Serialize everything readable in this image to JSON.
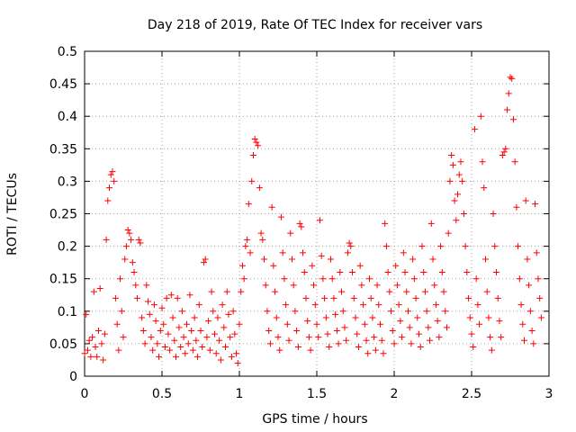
{
  "chart_data": {
    "type": "scatter",
    "title": "Day 218 of 2019, Rate Of TEC Index for receiver vars",
    "xlabel": "GPS time / hours",
    "ylabel": "ROTI / TECUs",
    "xlim": [
      0,
      3
    ],
    "ylim": [
      0,
      0.5
    ],
    "grid": true,
    "marker": "+",
    "marker_color": "#ff0000",
    "xticks": [
      0,
      0.5,
      1,
      1.5,
      2,
      2.5,
      3
    ],
    "yticks": [
      0,
      0.05,
      0.1,
      0.15,
      0.2,
      0.25,
      0.3,
      0.35,
      0.4,
      0.45,
      0.5
    ],
    "xtick_labels": [
      "0",
      "0.5",
      "1",
      "1.5",
      "2",
      "2.5",
      "3"
    ],
    "ytick_labels": [
      "0",
      "0.05",
      "0.1",
      "0.15",
      "0.2",
      "0.25",
      "0.3",
      "0.35",
      "0.4",
      "0.45",
      "0.5"
    ],
    "series": [
      {
        "name": "ROTI",
        "points": [
          [
            0.0,
            0.035
          ],
          [
            0.01,
            0.095
          ],
          [
            0.02,
            0.04
          ],
          [
            0.03,
            0.055
          ],
          [
            0.04,
            0.03
          ],
          [
            0.05,
            0.06
          ],
          [
            0.06,
            0.13
          ],
          [
            0.07,
            0.045
          ],
          [
            0.08,
            0.03
          ],
          [
            0.09,
            0.07
          ],
          [
            0.1,
            0.135
          ],
          [
            0.11,
            0.05
          ],
          [
            0.12,
            0.025
          ],
          [
            0.13,
            0.065
          ],
          [
            0.14,
            0.21
          ],
          [
            0.15,
            0.27
          ],
          [
            0.16,
            0.29
          ],
          [
            0.17,
            0.31
          ],
          [
            0.18,
            0.315
          ],
          [
            0.19,
            0.3
          ],
          [
            0.2,
            0.12
          ],
          [
            0.21,
            0.08
          ],
          [
            0.22,
            0.04
          ],
          [
            0.23,
            0.15
          ],
          [
            0.24,
            0.1
          ],
          [
            0.25,
            0.06
          ],
          [
            0.26,
            0.18
          ],
          [
            0.27,
            0.2
          ],
          [
            0.28,
            0.225
          ],
          [
            0.29,
            0.22
          ],
          [
            0.3,
            0.21
          ],
          [
            0.31,
            0.175
          ],
          [
            0.32,
            0.16
          ],
          [
            0.33,
            0.14
          ],
          [
            0.34,
            0.12
          ],
          [
            0.35,
            0.21
          ],
          [
            0.36,
            0.205
          ],
          [
            0.37,
            0.09
          ],
          [
            0.38,
            0.07
          ],
          [
            0.39,
            0.05
          ],
          [
            0.4,
            0.14
          ],
          [
            0.41,
            0.115
          ],
          [
            0.42,
            0.095
          ],
          [
            0.43,
            0.06
          ],
          [
            0.44,
            0.04
          ],
          [
            0.45,
            0.11
          ],
          [
            0.46,
            0.085
          ],
          [
            0.47,
            0.05
          ],
          [
            0.48,
            0.03
          ],
          [
            0.49,
            0.07
          ],
          [
            0.5,
            0.105
          ],
          [
            0.51,
            0.08
          ],
          [
            0.52,
            0.045
          ],
          [
            0.53,
            0.12
          ],
          [
            0.54,
            0.065
          ],
          [
            0.55,
            0.04
          ],
          [
            0.56,
            0.125
          ],
          [
            0.57,
            0.09
          ],
          [
            0.58,
            0.055
          ],
          [
            0.59,
            0.03
          ],
          [
            0.6,
            0.12
          ],
          [
            0.61,
            0.075
          ],
          [
            0.62,
            0.045
          ],
          [
            0.63,
            0.1
          ],
          [
            0.64,
            0.06
          ],
          [
            0.65,
            0.035
          ],
          [
            0.66,
            0.08
          ],
          [
            0.67,
            0.05
          ],
          [
            0.68,
            0.125
          ],
          [
            0.69,
            0.07
          ],
          [
            0.7,
            0.04
          ],
          [
            0.71,
            0.09
          ],
          [
            0.72,
            0.055
          ],
          [
            0.73,
            0.03
          ],
          [
            0.74,
            0.11
          ],
          [
            0.75,
            0.07
          ],
          [
            0.76,
            0.045
          ],
          [
            0.77,
            0.175
          ],
          [
            0.78,
            0.18
          ],
          [
            0.79,
            0.06
          ],
          [
            0.8,
            0.085
          ],
          [
            0.81,
            0.04
          ],
          [
            0.82,
            0.13
          ],
          [
            0.83,
            0.1
          ],
          [
            0.84,
            0.065
          ],
          [
            0.85,
            0.035
          ],
          [
            0.86,
            0.09
          ],
          [
            0.87,
            0.055
          ],
          [
            0.88,
            0.025
          ],
          [
            0.89,
            0.11
          ],
          [
            0.9,
            0.075
          ],
          [
            0.91,
            0.045
          ],
          [
            0.92,
            0.13
          ],
          [
            0.93,
            0.095
          ],
          [
            0.94,
            0.06
          ],
          [
            0.95,
            0.03
          ],
          [
            0.96,
            0.1
          ],
          [
            0.97,
            0.065
          ],
          [
            0.98,
            0.035
          ],
          [
            0.99,
            0.02
          ],
          [
            1.0,
            0.08
          ],
          [
            1.01,
            0.13
          ],
          [
            1.02,
            0.17
          ],
          [
            1.03,
            0.15
          ],
          [
            1.04,
            0.2
          ],
          [
            1.05,
            0.21
          ],
          [
            1.06,
            0.265
          ],
          [
            1.07,
            0.19
          ],
          [
            1.08,
            0.3
          ],
          [
            1.09,
            0.34
          ],
          [
            1.1,
            0.365
          ],
          [
            1.11,
            0.36
          ],
          [
            1.12,
            0.355
          ],
          [
            1.13,
            0.29
          ],
          [
            1.14,
            0.22
          ],
          [
            1.15,
            0.21
          ],
          [
            1.16,
            0.18
          ],
          [
            1.17,
            0.14
          ],
          [
            1.18,
            0.1
          ],
          [
            1.19,
            0.07
          ],
          [
            1.2,
            0.05
          ],
          [
            1.21,
            0.26
          ],
          [
            1.22,
            0.17
          ],
          [
            1.23,
            0.13
          ],
          [
            1.24,
            0.09
          ],
          [
            1.25,
            0.06
          ],
          [
            1.26,
            0.04
          ],
          [
            1.27,
            0.245
          ],
          [
            1.28,
            0.19
          ],
          [
            1.29,
            0.15
          ],
          [
            1.3,
            0.11
          ],
          [
            1.31,
            0.08
          ],
          [
            1.32,
            0.055
          ],
          [
            1.33,
            0.22
          ],
          [
            1.34,
            0.18
          ],
          [
            1.35,
            0.14
          ],
          [
            1.36,
            0.1
          ],
          [
            1.37,
            0.07
          ],
          [
            1.38,
            0.045
          ],
          [
            1.39,
            0.235
          ],
          [
            1.4,
            0.23
          ],
          [
            1.41,
            0.19
          ],
          [
            1.42,
            0.16
          ],
          [
            1.43,
            0.12
          ],
          [
            1.44,
            0.085
          ],
          [
            1.45,
            0.06
          ],
          [
            1.46,
            0.04
          ],
          [
            1.47,
            0.17
          ],
          [
            1.48,
            0.14
          ],
          [
            1.49,
            0.11
          ],
          [
            1.5,
            0.08
          ],
          [
            1.51,
            0.06
          ],
          [
            1.52,
            0.24
          ],
          [
            1.53,
            0.185
          ],
          [
            1.54,
            0.15
          ],
          [
            1.55,
            0.12
          ],
          [
            1.56,
            0.09
          ],
          [
            1.57,
            0.065
          ],
          [
            1.58,
            0.045
          ],
          [
            1.59,
            0.18
          ],
          [
            1.6,
            0.15
          ],
          [
            1.61,
            0.12
          ],
          [
            1.62,
            0.095
          ],
          [
            1.63,
            0.07
          ],
          [
            1.64,
            0.05
          ],
          [
            1.65,
            0.16
          ],
          [
            1.66,
            0.13
          ],
          [
            1.67,
            0.1
          ],
          [
            1.68,
            0.075
          ],
          [
            1.69,
            0.055
          ],
          [
            1.7,
            0.19
          ],
          [
            1.71,
            0.205
          ],
          [
            1.72,
            0.2
          ],
          [
            1.73,
            0.16
          ],
          [
            1.74,
            0.12
          ],
          [
            1.75,
            0.09
          ],
          [
            1.76,
            0.065
          ],
          [
            1.77,
            0.045
          ],
          [
            1.78,
            0.17
          ],
          [
            1.79,
            0.14
          ],
          [
            1.8,
            0.11
          ],
          [
            1.81,
            0.08
          ],
          [
            1.82,
            0.055
          ],
          [
            1.83,
            0.035
          ],
          [
            1.84,
            0.15
          ],
          [
            1.85,
            0.12
          ],
          [
            1.86,
            0.09
          ],
          [
            1.87,
            0.06
          ],
          [
            1.88,
            0.04
          ],
          [
            1.89,
            0.14
          ],
          [
            1.9,
            0.11
          ],
          [
            1.91,
            0.08
          ],
          [
            1.92,
            0.055
          ],
          [
            1.93,
            0.035
          ],
          [
            1.94,
            0.235
          ],
          [
            1.95,
            0.2
          ],
          [
            1.96,
            0.16
          ],
          [
            1.97,
            0.13
          ],
          [
            1.98,
            0.1
          ],
          [
            1.99,
            0.07
          ],
          [
            2.0,
            0.05
          ],
          [
            2.01,
            0.17
          ],
          [
            2.02,
            0.14
          ],
          [
            2.03,
            0.11
          ],
          [
            2.04,
            0.085
          ],
          [
            2.05,
            0.06
          ],
          [
            2.06,
            0.19
          ],
          [
            2.07,
            0.16
          ],
          [
            2.08,
            0.13
          ],
          [
            2.09,
            0.1
          ],
          [
            2.1,
            0.075
          ],
          [
            2.11,
            0.05
          ],
          [
            2.12,
            0.18
          ],
          [
            2.13,
            0.15
          ],
          [
            2.14,
            0.12
          ],
          [
            2.15,
            0.09
          ],
          [
            2.16,
            0.065
          ],
          [
            2.17,
            0.045
          ],
          [
            2.18,
            0.2
          ],
          [
            2.19,
            0.16
          ],
          [
            2.2,
            0.13
          ],
          [
            2.21,
            0.1
          ],
          [
            2.22,
            0.075
          ],
          [
            2.23,
            0.055
          ],
          [
            2.24,
            0.235
          ],
          [
            2.25,
            0.18
          ],
          [
            2.26,
            0.14
          ],
          [
            2.27,
            0.11
          ],
          [
            2.28,
            0.085
          ],
          [
            2.29,
            0.06
          ],
          [
            2.3,
            0.2
          ],
          [
            2.31,
            0.16
          ],
          [
            2.32,
            0.13
          ],
          [
            2.33,
            0.1
          ],
          [
            2.34,
            0.075
          ],
          [
            2.35,
            0.22
          ],
          [
            2.36,
            0.3
          ],
          [
            2.37,
            0.34
          ],
          [
            2.38,
            0.325
          ],
          [
            2.39,
            0.27
          ],
          [
            2.4,
            0.24
          ],
          [
            2.41,
            0.28
          ],
          [
            2.42,
            0.31
          ],
          [
            2.43,
            0.33
          ],
          [
            2.44,
            0.3
          ],
          [
            2.45,
            0.25
          ],
          [
            2.46,
            0.2
          ],
          [
            2.47,
            0.16
          ],
          [
            2.48,
            0.12
          ],
          [
            2.49,
            0.09
          ],
          [
            2.5,
            0.065
          ],
          [
            2.51,
            0.045
          ],
          [
            2.52,
            0.38
          ],
          [
            2.53,
            0.15
          ],
          [
            2.54,
            0.11
          ],
          [
            2.55,
            0.08
          ],
          [
            2.56,
            0.4
          ],
          [
            2.57,
            0.33
          ],
          [
            2.58,
            0.29
          ],
          [
            2.59,
            0.18
          ],
          [
            2.6,
            0.13
          ],
          [
            2.61,
            0.09
          ],
          [
            2.62,
            0.06
          ],
          [
            2.63,
            0.04
          ],
          [
            2.64,
            0.25
          ],
          [
            2.65,
            0.2
          ],
          [
            2.66,
            0.16
          ],
          [
            2.67,
            0.12
          ],
          [
            2.68,
            0.085
          ],
          [
            2.69,
            0.06
          ],
          [
            2.7,
            0.34
          ],
          [
            2.71,
            0.345
          ],
          [
            2.72,
            0.35
          ],
          [
            2.73,
            0.41
          ],
          [
            2.74,
            0.435
          ],
          [
            2.75,
            0.46
          ],
          [
            2.76,
            0.458
          ],
          [
            2.77,
            0.395
          ],
          [
            2.78,
            0.33
          ],
          [
            2.79,
            0.26
          ],
          [
            2.8,
            0.2
          ],
          [
            2.81,
            0.15
          ],
          [
            2.82,
            0.11
          ],
          [
            2.83,
            0.08
          ],
          [
            2.84,
            0.055
          ],
          [
            2.85,
            0.27
          ],
          [
            2.86,
            0.18
          ],
          [
            2.87,
            0.14
          ],
          [
            2.88,
            0.1
          ],
          [
            2.89,
            0.07
          ],
          [
            2.9,
            0.05
          ],
          [
            2.91,
            0.265
          ],
          [
            2.92,
            0.19
          ],
          [
            2.93,
            0.15
          ],
          [
            2.94,
            0.12
          ],
          [
            2.95,
            0.09
          ]
        ]
      }
    ]
  }
}
